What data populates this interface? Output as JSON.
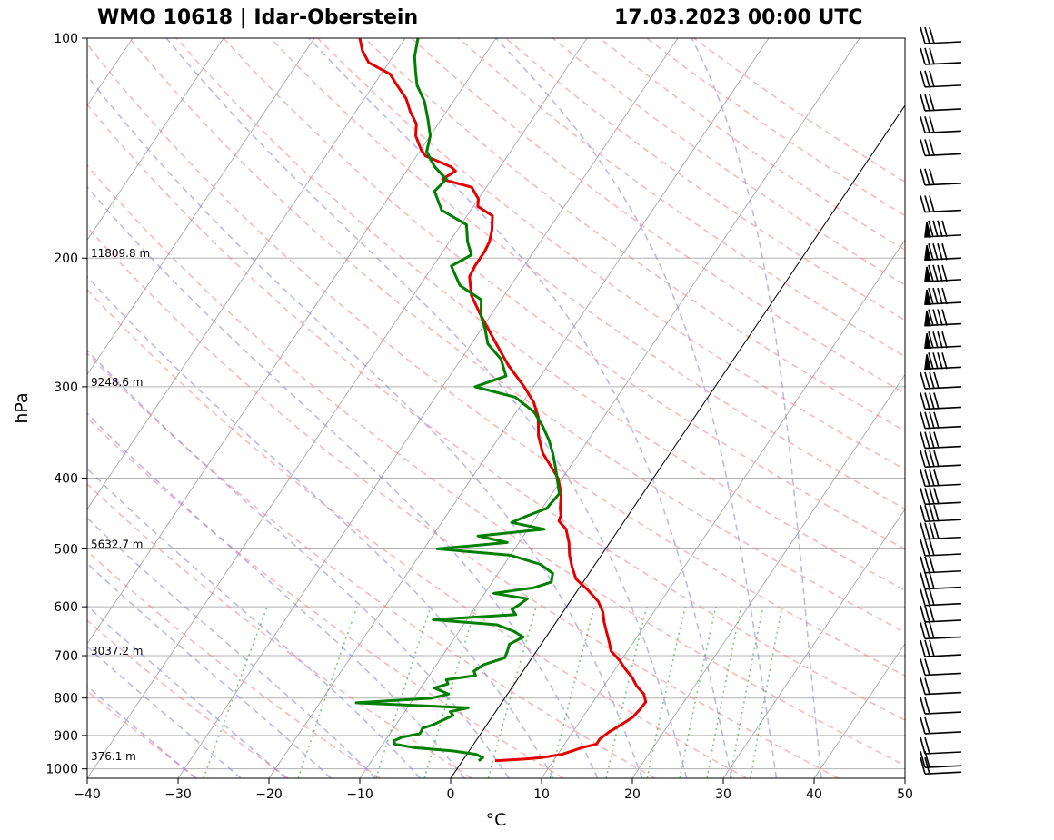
{
  "title_left": "WMO 10618 | Idar-Oberstein",
  "title_right": "17.03.2023 00:00 UTC",
  "chart_data": {
    "type": "line",
    "diagram": "skew-T log-P",
    "xlabel": "°C",
    "ylabel": "hPa",
    "xlim": [
      -40,
      50
    ],
    "ylim": [
      1030,
      100
    ],
    "y_scale": "log",
    "x_ticks": [
      "−40",
      "−30",
      "−20",
      "−10",
      "0",
      "10",
      "20",
      "30",
      "40",
      "50"
    ],
    "x_tick_values": [
      -40,
      -30,
      -20,
      -10,
      0,
      10,
      20,
      30,
      40,
      50
    ],
    "y_ticks": [
      100,
      200,
      300,
      400,
      500,
      600,
      700,
      800,
      900,
      1000
    ],
    "height_labels": [
      {
        "p": 200,
        "text": "11809.8 m"
      },
      {
        "p": 300,
        "text": "9248.6 m"
      },
      {
        "p": 500,
        "text": "5632.7 m"
      },
      {
        "p": 700,
        "text": "3037.2 m"
      },
      {
        "p": 975,
        "text": "376.1 m"
      }
    ],
    "series": [
      {
        "color": "#e50000",
        "points": [
          [
            975,
            3.6
          ],
          [
            970,
            6.5
          ],
          [
            965,
            8.5
          ],
          [
            955,
            10.5
          ],
          [
            935,
            12.2
          ],
          [
            925,
            13.5
          ],
          [
            910,
            13.5
          ],
          [
            890,
            14.0
          ],
          [
            870,
            14.8
          ],
          [
            850,
            15.5
          ],
          [
            830,
            15.7
          ],
          [
            810,
            15.8
          ],
          [
            790,
            15.0
          ],
          [
            770,
            13.6
          ],
          [
            750,
            12.5
          ],
          [
            730,
            11.1
          ],
          [
            710,
            9.8
          ],
          [
            690,
            8.2
          ],
          [
            670,
            7.3
          ],
          [
            650,
            6.3
          ],
          [
            630,
            5.3
          ],
          [
            610,
            4.4
          ],
          [
            590,
            3.1
          ],
          [
            570,
            1.2
          ],
          [
            550,
            -1.0
          ],
          [
            530,
            -2.3
          ],
          [
            510,
            -3.5
          ],
          [
            490,
            -4.5
          ],
          [
            470,
            -5.8
          ],
          [
            458,
            -7.2
          ],
          [
            450,
            -7.4
          ],
          [
            440,
            -8.0
          ],
          [
            420,
            -9.0
          ],
          [
            400,
            -10.5
          ],
          [
            385,
            -12.2
          ],
          [
            370,
            -14.0
          ],
          [
            350,
            -15.8
          ],
          [
            330,
            -17.2
          ],
          [
            315,
            -18.8
          ],
          [
            300,
            -21.0
          ],
          [
            280,
            -24.4
          ],
          [
            260,
            -27.6
          ],
          [
            240,
            -31.0
          ],
          [
            225,
            -33.6
          ],
          [
            212,
            -35.2
          ],
          [
            205,
            -35.4
          ],
          [
            196,
            -35.4
          ],
          [
            190,
            -35.6
          ],
          [
            183,
            -36.2
          ],
          [
            175,
            -37.2
          ],
          [
            170,
            -39.5
          ],
          [
            166,
            -40.0
          ],
          [
            160,
            -41.6
          ],
          [
            156,
            -45.4
          ],
          [
            152,
            -44.6
          ],
          [
            150,
            -45.4
          ],
          [
            145,
            -49.0
          ],
          [
            142,
            -50.0
          ],
          [
            136,
            -51.6
          ],
          [
            131,
            -52.4
          ],
          [
            126,
            -54.0
          ],
          [
            121,
            -55.4
          ],
          [
            116,
            -57.4
          ],
          [
            112,
            -59.0
          ],
          [
            108,
            -62.2
          ],
          [
            104,
            -63.8
          ],
          [
            100,
            -65.0
          ]
        ]
      },
      {
        "color": "#007f00",
        "points": [
          [
            975,
            1.8
          ],
          [
            965,
            2.0
          ],
          [
            955,
            1.0
          ],
          [
            945,
            -1.8
          ],
          [
            935,
            -6.4
          ],
          [
            925,
            -8.7
          ],
          [
            915,
            -9.0
          ],
          [
            905,
            -8.4
          ],
          [
            895,
            -6.7
          ],
          [
            880,
            -6.8
          ],
          [
            870,
            -5.9
          ],
          [
            855,
            -5.0
          ],
          [
            845,
            -4.4
          ],
          [
            835,
            -5.0
          ],
          [
            825,
            -3.3
          ],
          [
            812,
            -16.0
          ],
          [
            800,
            -8.0
          ],
          [
            790,
            -6.5
          ],
          [
            775,
            -8.5
          ],
          [
            765,
            -7.3
          ],
          [
            755,
            -7.8
          ],
          [
            745,
            -4.9
          ],
          [
            735,
            -5.4
          ],
          [
            720,
            -4.8
          ],
          [
            705,
            -3.0
          ],
          [
            690,
            -3.2
          ],
          [
            675,
            -3.5
          ],
          [
            660,
            -2.5
          ],
          [
            648,
            -4.0
          ],
          [
            635,
            -6.3
          ],
          [
            625,
            -13.7
          ],
          [
            615,
            -5.0
          ],
          [
            605,
            -5.8
          ],
          [
            595,
            -5.3
          ],
          [
            585,
            -4.9
          ],
          [
            575,
            -9.0
          ],
          [
            565,
            -5.0
          ],
          [
            555,
            -3.5
          ],
          [
            540,
            -4.0
          ],
          [
            525,
            -6.0
          ],
          [
            510,
            -10.0
          ],
          [
            500,
            -18.5
          ],
          [
            490,
            -11.3
          ],
          [
            480,
            -15.0
          ],
          [
            470,
            -8.2
          ],
          [
            460,
            -12.3
          ],
          [
            450,
            -11.0
          ],
          [
            440,
            -9.5
          ],
          [
            420,
            -9.2
          ],
          [
            400,
            -10.6
          ],
          [
            385,
            -11.7
          ],
          [
            370,
            -12.9
          ],
          [
            355,
            -14.3
          ],
          [
            340,
            -16.0
          ],
          [
            325,
            -18.0
          ],
          [
            310,
            -21.2
          ],
          [
            300,
            -26.4
          ],
          [
            290,
            -23.8
          ],
          [
            275,
            -25.6
          ],
          [
            262,
            -28.2
          ],
          [
            250,
            -29.6
          ],
          [
            240,
            -31.0
          ],
          [
            228,
            -32.2
          ],
          [
            218,
            -35.6
          ],
          [
            205,
            -38.0
          ],
          [
            198,
            -36.6
          ],
          [
            190,
            -38.0
          ],
          [
            180,
            -39.4
          ],
          [
            172,
            -43.2
          ],
          [
            162,
            -45.4
          ],
          [
            156,
            -45.0
          ],
          [
            150,
            -47.2
          ],
          [
            143,
            -49.2
          ],
          [
            136,
            -50.0
          ],
          [
            129,
            -51.5
          ],
          [
            122,
            -53.2
          ],
          [
            116,
            -55.2
          ],
          [
            111,
            -56.4
          ],
          [
            106,
            -57.6
          ],
          [
            100,
            -58.6
          ]
        ]
      }
    ],
    "parcel_line": {
      "color": "#000000",
      "t0_at_1030": 0.0
    }
  },
  "wind_barbs": {
    "color": "#000000",
    "levels_hpa": [
      100,
      108,
      116,
      125,
      134,
      144,
      158,
      172,
      186,
      200,
      214,
      230,
      246,
      264,
      282,
      300,
      320,
      340,
      362,
      384,
      408,
      432,
      456,
      482,
      508,
      536,
      564,
      594,
      626,
      660,
      698,
      740,
      786,
      836,
      890,
      948,
      990,
      1010
    ]
  },
  "colors": {
    "isotherm": "#a0a0a0",
    "dry_adiabat": "#f08080",
    "moist_adiabat": "#8080e6",
    "mixing_ratio": "#2ca02c",
    "grid": "#b0b0b0"
  }
}
